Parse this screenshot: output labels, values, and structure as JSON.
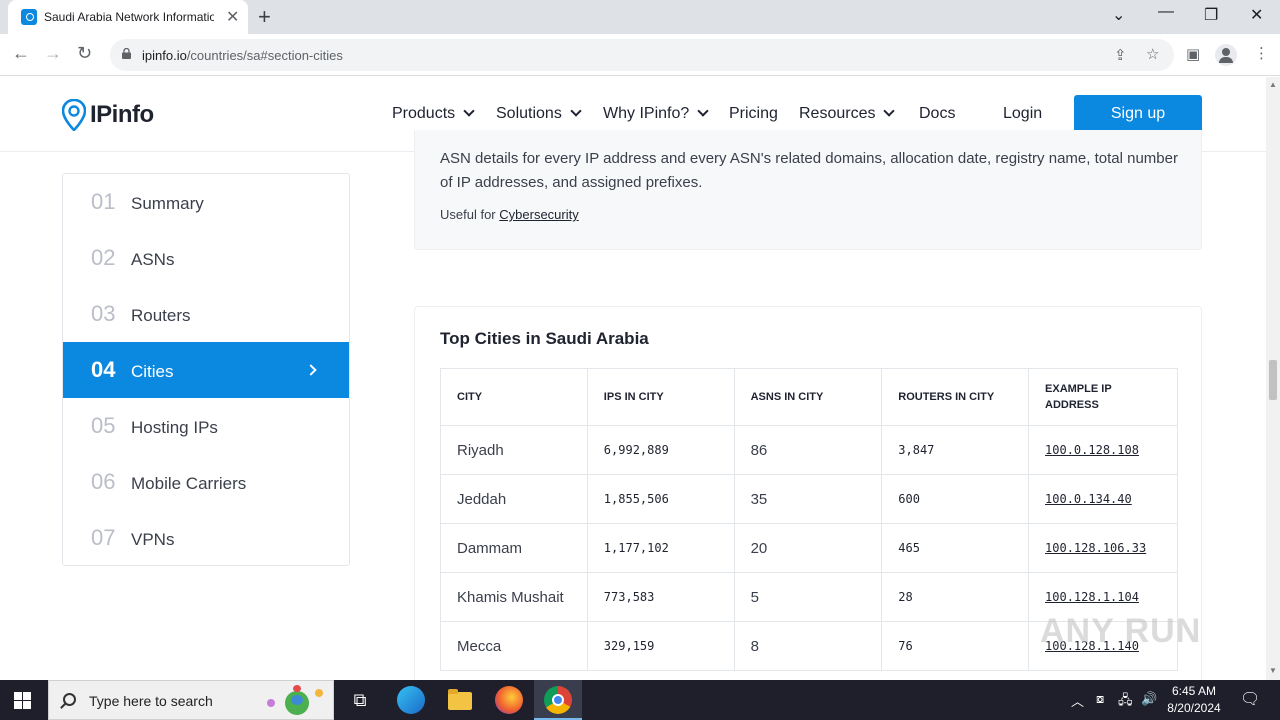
{
  "browser": {
    "tab_title": "Saudi Arabia Network Informatio",
    "url_host": "ipinfo.io",
    "url_path": "/countries/sa#section-cities"
  },
  "header": {
    "logo_text": "IPinfo",
    "nav": [
      {
        "label": "Products",
        "has_menu": true
      },
      {
        "label": "Solutions",
        "has_menu": true
      },
      {
        "label": "Why IPinfo?",
        "has_menu": true
      },
      {
        "label": "Pricing",
        "has_menu": false
      },
      {
        "label": "Resources",
        "has_menu": true
      },
      {
        "label": "Docs",
        "has_menu": false
      }
    ],
    "login_label": "Login",
    "signup_label": "Sign up"
  },
  "sidebar": {
    "items": [
      {
        "num": "01",
        "label": "Summary"
      },
      {
        "num": "02",
        "label": "ASNs"
      },
      {
        "num": "03",
        "label": "Routers"
      },
      {
        "num": "04",
        "label": "Cities",
        "active": true
      },
      {
        "num": "05",
        "label": "Hosting IPs"
      },
      {
        "num": "06",
        "label": "Mobile Carriers"
      },
      {
        "num": "07",
        "label": "VPNs"
      }
    ]
  },
  "asn_card": {
    "description": "ASN details for every IP address and every ASN's related domains, allocation date, registry name, total number of IP addresses, and assigned prefixes.",
    "useful_for_prefix": "Useful for",
    "useful_for_link": "Cybersecurity"
  },
  "cities": {
    "title": "Top Cities in Saudi Arabia",
    "columns": [
      "CITY",
      "IPS IN CITY",
      "ASNS IN CITY",
      "ROUTERS IN CITY",
      "EXAMPLE IP ADDRESS"
    ],
    "rows": [
      {
        "city": "Riyadh",
        "ips": "6,992,889",
        "asns": "86",
        "routers": "3,847",
        "example_ip": "100.0.128.108"
      },
      {
        "city": "Jeddah",
        "ips": "1,855,506",
        "asns": "35",
        "routers": "600",
        "example_ip": "100.0.134.40"
      },
      {
        "city": "Dammam",
        "ips": "1,177,102",
        "asns": "20",
        "routers": "465",
        "example_ip": "100.128.106.33"
      },
      {
        "city": "Khamis Mushait",
        "ips": "773,583",
        "asns": "5",
        "routers": "28",
        "example_ip": "100.128.1.104"
      },
      {
        "city": "Mecca",
        "ips": "329,159",
        "asns": "8",
        "routers": "76",
        "example_ip": "100.128.1.140"
      }
    ]
  },
  "watermark": "ANY RUN",
  "taskbar": {
    "search_placeholder": "Type here to search",
    "time": "6:45 AM",
    "date": "8/20/2024"
  },
  "colors": {
    "accent": "#0b88e0"
  }
}
